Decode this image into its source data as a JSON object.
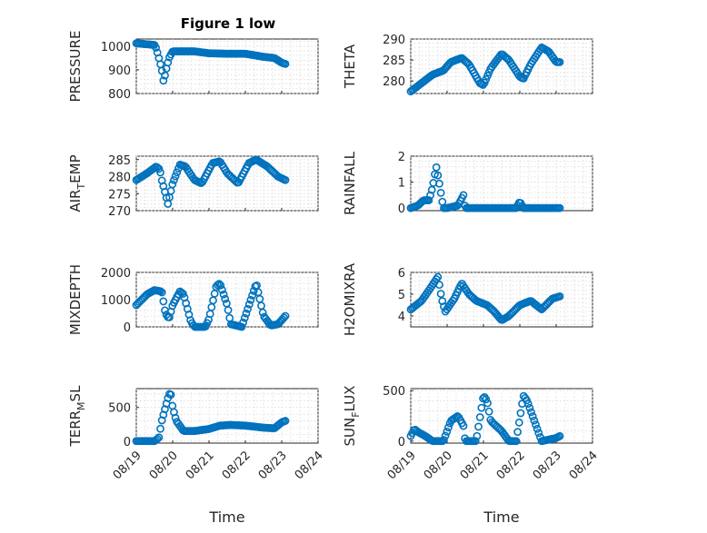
{
  "chart_data": [
    {
      "type": "scatter",
      "title": "Figure 1 low",
      "ylabel": "PRESSURE",
      "xlim": [
        0,
        5
      ],
      "ylim": [
        800,
        1030
      ],
      "yticks": [
        800,
        900,
        1000
      ],
      "xticks": [
        0,
        1,
        2,
        3,
        4,
        5
      ],
      "xticklabels": [
        "08/19",
        "08/20",
        "08/21",
        "08/22",
        "08/23",
        "08/24"
      ],
      "show_xticklabels": false,
      "grid": true,
      "x_range": [
        0,
        4.1
      ],
      "anchors": [
        [
          0,
          1012
        ],
        [
          0.5,
          1005
        ],
        [
          0.55,
          990
        ],
        [
          0.62,
          950
        ],
        [
          0.7,
          900
        ],
        [
          0.75,
          850
        ],
        [
          0.82,
          900
        ],
        [
          0.9,
          950
        ],
        [
          1.0,
          978
        ],
        [
          1.3,
          978
        ],
        [
          1.6,
          978
        ],
        [
          2.0,
          970
        ],
        [
          2.5,
          968
        ],
        [
          3.0,
          968
        ],
        [
          3.5,
          955
        ],
        [
          3.8,
          950
        ],
        [
          4.0,
          930
        ],
        [
          4.1,
          925
        ]
      ]
    },
    {
      "type": "scatter",
      "ylabel": "THETA",
      "xlim": [
        0,
        5
      ],
      "ylim": [
        277,
        290
      ],
      "yticks": [
        280,
        285,
        290
      ],
      "xticks": [
        0,
        1,
        2,
        3,
        4,
        5
      ],
      "xticklabels": [
        "08/19",
        "08/20",
        "08/21",
        "08/22",
        "08/23",
        "08/24"
      ],
      "show_xticklabels": false,
      "grid": true,
      "x_range": [
        0,
        4.1
      ],
      "anchors": [
        [
          0,
          277.5
        ],
        [
          0.3,
          279.5
        ],
        [
          0.6,
          281.5
        ],
        [
          0.9,
          282.5
        ],
        [
          1.1,
          284.5
        ],
        [
          1.4,
          285.5
        ],
        [
          1.6,
          284
        ],
        [
          1.9,
          279.5
        ],
        [
          2.0,
          279
        ],
        [
          2.2,
          283
        ],
        [
          2.5,
          286.5
        ],
        [
          2.7,
          285
        ],
        [
          3.0,
          281
        ],
        [
          3.1,
          280.5
        ],
        [
          3.3,
          284
        ],
        [
          3.6,
          288
        ],
        [
          3.8,
          287
        ],
        [
          4.0,
          284.5
        ],
        [
          4.1,
          284.5
        ]
      ]
    },
    {
      "type": "scatter",
      "ylabel": "AIR_TEMP",
      "ylabel_main": "AIR",
      "ylabel_sub": "T",
      "ylabel_tail": "EMP",
      "xlim": [
        0,
        5
      ],
      "ylim": [
        270,
        286
      ],
      "yticks": [
        270,
        275,
        280,
        285
      ],
      "xticks": [
        0,
        1,
        2,
        3,
        4,
        5
      ],
      "xticklabels": [
        "08/19",
        "08/20",
        "08/21",
        "08/22",
        "08/23",
        "08/24"
      ],
      "show_xticklabels": false,
      "grid": true,
      "x_range": [
        0,
        4.1
      ],
      "anchors": [
        [
          0,
          279
        ],
        [
          0.3,
          281
        ],
        [
          0.55,
          283
        ],
        [
          0.65,
          282
        ],
        [
          0.7,
          279
        ],
        [
          0.8,
          275
        ],
        [
          0.87,
          272
        ],
        [
          1.0,
          278
        ],
        [
          1.2,
          283.5
        ],
        [
          1.35,
          283
        ],
        [
          1.6,
          279
        ],
        [
          1.8,
          278
        ],
        [
          2.1,
          284
        ],
        [
          2.3,
          284.5
        ],
        [
          2.5,
          281
        ],
        [
          2.8,
          278
        ],
        [
          3.1,
          284
        ],
        [
          3.3,
          285
        ],
        [
          3.6,
          283
        ],
        [
          3.9,
          280
        ],
        [
          4.1,
          279
        ]
      ]
    },
    {
      "type": "scatter",
      "ylabel": "RAINFALL",
      "xlim": [
        0,
        5
      ],
      "ylim": [
        -0.1,
        2
      ],
      "yticks": [
        0,
        1,
        2
      ],
      "xticks": [
        0,
        1,
        2,
        3,
        4,
        5
      ],
      "xticklabels": [
        "08/19",
        "08/20",
        "08/21",
        "08/22",
        "08/23",
        "08/24"
      ],
      "show_xticklabels": false,
      "grid": true,
      "x_range": [
        0,
        4.1
      ],
      "anchors": [
        [
          0,
          0
        ],
        [
          0.2,
          0.1
        ],
        [
          0.35,
          0.3
        ],
        [
          0.5,
          0.3
        ],
        [
          0.6,
          0.8
        ],
        [
          0.7,
          1.6
        ],
        [
          0.78,
          1.0
        ],
        [
          0.85,
          0.4
        ],
        [
          0.9,
          0
        ],
        [
          1.0,
          0
        ],
        [
          1.3,
          0.1
        ],
        [
          1.45,
          0.5
        ],
        [
          1.5,
          0
        ],
        [
          2.0,
          0
        ],
        [
          2.5,
          0
        ],
        [
          2.9,
          0
        ],
        [
          3.0,
          0.25
        ],
        [
          3.1,
          0
        ],
        [
          3.5,
          0
        ],
        [
          4.1,
          0
        ]
      ]
    },
    {
      "type": "scatter",
      "ylabel": "MIXDEPTH",
      "xlim": [
        0,
        5
      ],
      "ylim": [
        0,
        2000
      ],
      "yticks": [
        0,
        1000,
        2000
      ],
      "xticks": [
        0,
        1,
        2,
        3,
        4,
        5
      ],
      "xticklabels": [
        "08/19",
        "08/20",
        "08/21",
        "08/22",
        "08/23",
        "08/24"
      ],
      "show_xticklabels": false,
      "grid": true,
      "x_range": [
        0,
        4.1
      ],
      "anchors": [
        [
          0,
          800
        ],
        [
          0.3,
          1200
        ],
        [
          0.5,
          1350
        ],
        [
          0.7,
          1300
        ],
        [
          0.8,
          500
        ],
        [
          0.9,
          300
        ],
        [
          1.0,
          800
        ],
        [
          1.2,
          1300
        ],
        [
          1.3,
          1200
        ],
        [
          1.5,
          200
        ],
        [
          1.6,
          0
        ],
        [
          1.9,
          0
        ],
        [
          2.0,
          300
        ],
        [
          2.2,
          1500
        ],
        [
          2.3,
          1600
        ],
        [
          2.5,
          800
        ],
        [
          2.6,
          100
        ],
        [
          2.9,
          0
        ],
        [
          3.1,
          800
        ],
        [
          3.3,
          1600
        ],
        [
          3.5,
          400
        ],
        [
          3.7,
          50
        ],
        [
          3.9,
          100
        ],
        [
          4.1,
          400
        ]
      ]
    },
    {
      "type": "scatter",
      "ylabel": "H2OMIXRA",
      "xlim": [
        0,
        5
      ],
      "ylim": [
        3.5,
        6
      ],
      "yticks": [
        4,
        5,
        6
      ],
      "xticks": [
        0,
        1,
        2,
        3,
        4,
        5
      ],
      "xticklabels": [
        "08/19",
        "08/20",
        "08/21",
        "08/22",
        "08/23",
        "08/24"
      ],
      "show_xticklabels": false,
      "grid": true,
      "x_range": [
        0,
        4.1
      ],
      "anchors": [
        [
          0,
          4.3
        ],
        [
          0.3,
          4.7
        ],
        [
          0.55,
          5.3
        ],
        [
          0.75,
          5.8
        ],
        [
          0.85,
          4.8
        ],
        [
          0.95,
          4.2
        ],
        [
          1.2,
          4.8
        ],
        [
          1.4,
          5.5
        ],
        [
          1.6,
          5
        ],
        [
          1.8,
          4.7
        ],
        [
          2.1,
          4.5
        ],
        [
          2.3,
          4.2
        ],
        [
          2.5,
          3.8
        ],
        [
          2.7,
          4
        ],
        [
          3.0,
          4.5
        ],
        [
          3.3,
          4.7
        ],
        [
          3.6,
          4.3
        ],
        [
          3.9,
          4.8
        ],
        [
          4.1,
          4.9
        ]
      ]
    },
    {
      "type": "scatter",
      "ylabel": "TERR_MSL",
      "ylabel_main": "TERR",
      "ylabel_sub": "M",
      "ylabel_tail": "SL",
      "xlim": [
        0,
        5
      ],
      "ylim": [
        -30,
        780
      ],
      "yticks": [
        0,
        500
      ],
      "xticks": [
        0,
        1,
        2,
        3,
        4,
        5
      ],
      "xticklabels": [
        "08/19",
        "08/20",
        "08/21",
        "08/22",
        "08/23",
        "08/24"
      ],
      "show_xticklabels": true,
      "xlabel": "Time",
      "grid": true,
      "x_range": [
        0,
        4.1
      ],
      "anchors": [
        [
          0,
          0
        ],
        [
          0.5,
          0
        ],
        [
          0.62,
          50
        ],
        [
          0.7,
          300
        ],
        [
          0.8,
          500
        ],
        [
          0.9,
          700
        ],
        [
          0.95,
          700
        ],
        [
          1.0,
          500
        ],
        [
          1.1,
          300
        ],
        [
          1.3,
          150
        ],
        [
          1.6,
          150
        ],
        [
          2.0,
          180
        ],
        [
          2.3,
          230
        ],
        [
          2.6,
          240
        ],
        [
          3.0,
          230
        ],
        [
          3.5,
          200
        ],
        [
          3.8,
          190
        ],
        [
          4.0,
          280
        ],
        [
          4.1,
          300
        ]
      ]
    },
    {
      "type": "scatter",
      "ylabel": "SUN_FLUX",
      "ylabel_main": "SUN",
      "ylabel_sub": "F",
      "ylabel_tail": "LUX",
      "xlim": [
        0,
        5
      ],
      "ylim": [
        -20,
        520
      ],
      "yticks": [
        0,
        500
      ],
      "xticks": [
        0,
        1,
        2,
        3,
        4,
        5
      ],
      "xticklabels": [
        "08/19",
        "08/20",
        "08/21",
        "08/22",
        "08/23",
        "08/24"
      ],
      "show_xticklabels": true,
      "xlabel": "Time",
      "grid": true,
      "x_range": [
        0,
        4.1
      ],
      "anchors": [
        [
          0,
          50
        ],
        [
          0.1,
          120
        ],
        [
          0.2,
          90
        ],
        [
          0.4,
          50
        ],
        [
          0.6,
          0
        ],
        [
          0.9,
          0
        ],
        [
          1.1,
          200
        ],
        [
          1.3,
          250
        ],
        [
          1.45,
          150
        ],
        [
          1.5,
          0
        ],
        [
          1.8,
          0
        ],
        [
          2.0,
          450
        ],
        [
          2.1,
          400
        ],
        [
          2.2,
          200
        ],
        [
          2.5,
          100
        ],
        [
          2.7,
          0
        ],
        [
          2.9,
          0
        ],
        [
          3.1,
          450
        ],
        [
          3.2,
          400
        ],
        [
          3.4,
          200
        ],
        [
          3.6,
          0
        ],
        [
          4.0,
          30
        ],
        [
          4.1,
          50
        ]
      ]
    }
  ]
}
